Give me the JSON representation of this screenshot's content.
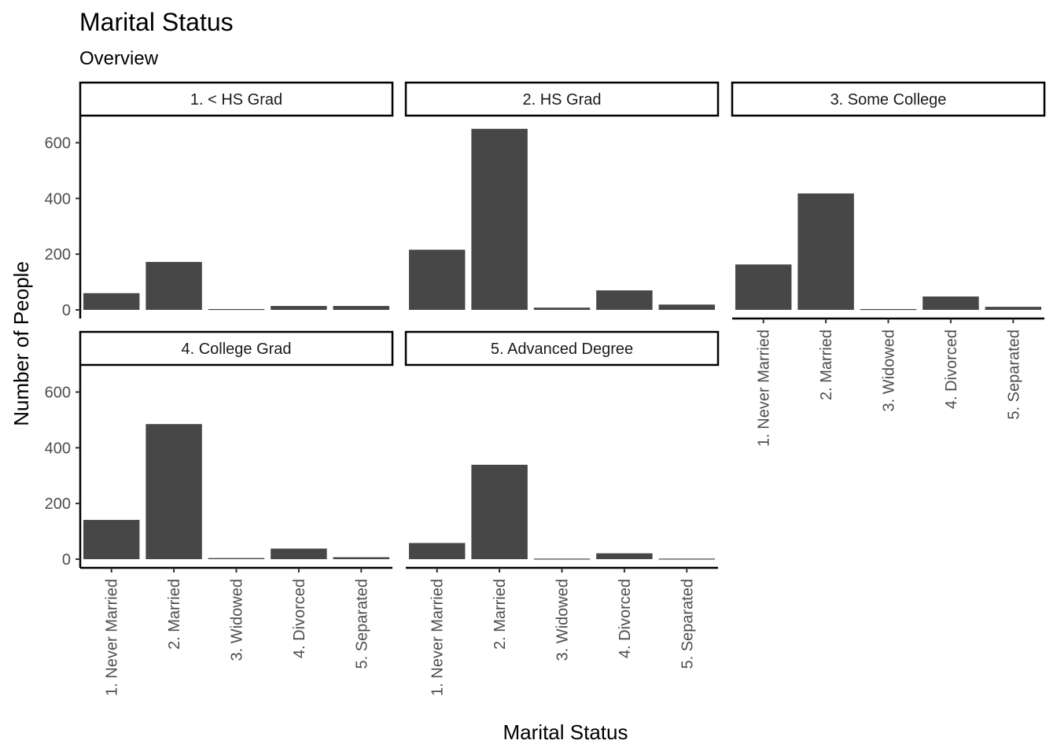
{
  "chart_data": {
    "type": "bar",
    "title": "Marital Status",
    "subtitle": "Overview",
    "xlabel": "Marital Status",
    "ylabel": "Number of People",
    "categories": [
      "1. Never Married",
      "2. Married",
      "3. Widowed",
      "4. Divorced",
      "5. Separated"
    ],
    "ylim": [
      0,
      680
    ],
    "yticks": [
      0,
      200,
      400,
      600
    ],
    "grid": false,
    "bar_color": "#474747",
    "facets": [
      {
        "name": "1. < HS Grad",
        "values": [
          60,
          172,
          3,
          14,
          14
        ]
      },
      {
        "name": "2. HS Grad",
        "values": [
          216,
          650,
          8,
          70,
          19
        ]
      },
      {
        "name": "3. Some College",
        "values": [
          163,
          418,
          3,
          48,
          11
        ]
      },
      {
        "name": "4. College Grad",
        "values": [
          141,
          485,
          4,
          38,
          7
        ]
      },
      {
        "name": "5. Advanced Degree",
        "values": [
          58,
          339,
          2,
          21,
          2
        ]
      }
    ]
  }
}
